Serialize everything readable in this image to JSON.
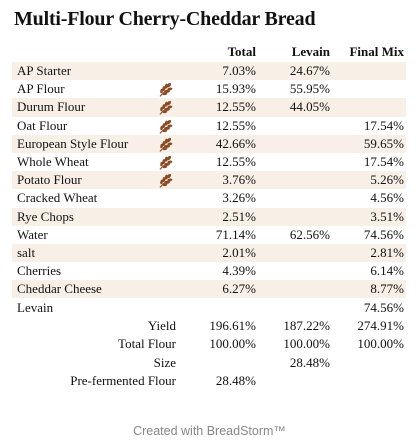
{
  "title": "Multi-Flour Cherry-Cheddar Bread",
  "headers": {
    "total": "Total",
    "levain": "Levain",
    "final": "Final Mix"
  },
  "ingredients": [
    {
      "name": "AP Starter",
      "total": "7.03%",
      "levain": "24.67%",
      "final": "",
      "icon": ""
    },
    {
      "name": "AP Flour",
      "total": "15.93%",
      "levain": "55.95%",
      "final": "",
      "icon": "wheat-icon"
    },
    {
      "name": "Durum Flour",
      "total": "12.55%",
      "levain": "44.05%",
      "final": "",
      "icon": "wheat-icon"
    },
    {
      "name": "Oat Flour",
      "total": "12.55%",
      "levain": "",
      "final": "17.54%",
      "icon": "wheat-icon"
    },
    {
      "name": "European Style Flour",
      "total": "42.66%",
      "levain": "",
      "final": "59.65%",
      "icon": "wheat-icon"
    },
    {
      "name": "Whole Wheat",
      "total": "12.55%",
      "levain": "",
      "final": "17.54%",
      "icon": "wheat-icon"
    },
    {
      "name": "Potato Flour",
      "total": "3.76%",
      "levain": "",
      "final": "5.26%",
      "icon": "wheat-icon"
    },
    {
      "name": "Cracked Wheat",
      "total": "3.26%",
      "levain": "",
      "final": "4.56%",
      "icon": ""
    },
    {
      "name": "Rye Chops",
      "total": "2.51%",
      "levain": "",
      "final": "3.51%",
      "icon": ""
    },
    {
      "name": "Water",
      "total": "71.14%",
      "levain": "62.56%",
      "final": "74.56%",
      "icon": ""
    },
    {
      "name": "salt",
      "total": "2.01%",
      "levain": "",
      "final": "2.81%",
      "icon": ""
    },
    {
      "name": "Cherries",
      "total": "4.39%",
      "levain": "",
      "final": "6.14%",
      "icon": ""
    },
    {
      "name": "Cheddar Cheese",
      "total": "6.27%",
      "levain": "",
      "final": "8.77%",
      "icon": ""
    },
    {
      "name": "Levain",
      "total": "",
      "levain": "",
      "final": "74.56%",
      "icon": ""
    }
  ],
  "summary": [
    {
      "label": "Yield",
      "total": "196.61%",
      "levain": "187.22%",
      "final": "274.91%"
    },
    {
      "label": "Total Flour",
      "total": "100.00%",
      "levain": "100.00%",
      "final": "100.00%"
    },
    {
      "label": "Size",
      "total": "",
      "levain": "28.48%",
      "final": ""
    },
    {
      "label": "Pre-fermented Flour",
      "total": "28.48%",
      "levain": "",
      "final": ""
    }
  ],
  "footer": "Created with BreadStorm™",
  "colors": {
    "stripe": "#f8efe6",
    "wheat": "#8a4a22",
    "footer": "#888888"
  }
}
